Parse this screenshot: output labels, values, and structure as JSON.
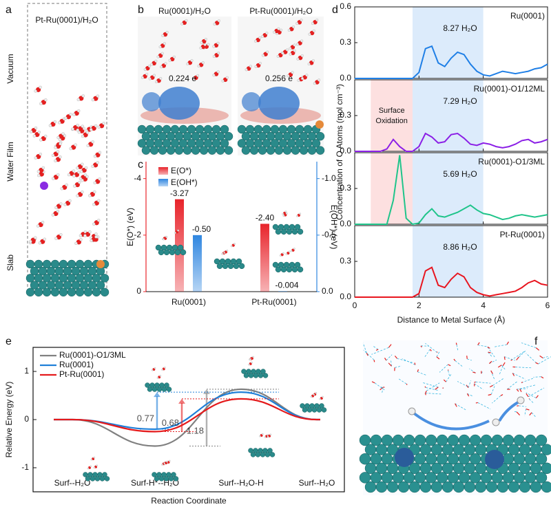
{
  "panel_labels": [
    "a",
    "b",
    "c",
    "d",
    "e",
    "f"
  ],
  "panel_a": {
    "title": "Pt-Ru(0001)/H₂O",
    "regions": [
      "Vacuum",
      "Water Film",
      "Slab"
    ]
  },
  "panel_b": {
    "images": [
      {
        "title": "Ru(0001)/H₂O",
        "charge": "0.224 e"
      },
      {
        "title": "Pt-Ru(0001)/H₂O",
        "charge": "0.256 e"
      }
    ]
  },
  "panel_d": {
    "xlabel": "Distance to Metal Surface (Å)",
    "ylabel": "Concentration of O Atoms (mol cm⁻³)"
  },
  "chart_data": [
    {
      "type": "bar",
      "categories": [
        "Ru(0001)",
        "Pt-Ru(0001)"
      ],
      "series": [
        {
          "name": "E(O*)",
          "color": "#e8242b",
          "values": [
            -3.27,
            -2.4
          ],
          "value_labels": [
            "-3.27",
            "-2.40"
          ]
        },
        {
          "name": "E(OH*)",
          "color": "#2f86e0",
          "axis": "y2",
          "values": [
            -0.5,
            -0.004
          ],
          "value_labels": [
            "-0.50",
            "-0.004"
          ]
        }
      ],
      "ylabel": "E(O*) (eV)",
      "y2label": "E(OH*) (eV)",
      "ylim": [
        0,
        -4.6
      ],
      "yticks": [
        -4,
        -2,
        0
      ],
      "y2lim": [
        0,
        -1.15
      ],
      "y2ticks": [
        {
          "value": -1,
          "label": "-1.0"
        },
        -0.5,
        {
          "value": 0,
          "label": "0.0"
        }
      ]
    },
    {
      "type": "line",
      "x": [
        0,
        0.2,
        0.4,
        0.6,
        0.8,
        1.0,
        1.2,
        1.4,
        1.6,
        1.8,
        2.0,
        2.2,
        2.4,
        2.6,
        2.8,
        3.0,
        3.2,
        3.4,
        3.6,
        3.8,
        4.0,
        4.2,
        4.4,
        4.6,
        4.8,
        5.0,
        5.2,
        5.4,
        5.6,
        5.8,
        6.0
      ],
      "series": [
        {
          "name": "Ru(0001)",
          "color": "#1f7fe6",
          "values": [
            0,
            0,
            0,
            0,
            0,
            0,
            0,
            0,
            0,
            0,
            0.05,
            0.25,
            0.27,
            0.13,
            0.1,
            0.17,
            0.22,
            0.2,
            0.12,
            0.06,
            0.03,
            0.02,
            0.04,
            0.06,
            0.05,
            0.04,
            0.05,
            0.06,
            0.08,
            0.09,
            0.12
          ]
        }
      ],
      "annotation": "8.27 H₂O",
      "ylim": [
        0,
        0.6
      ],
      "yticks": [
        {
          "value": 0,
          "label": "0.0"
        },
        0.3,
        0.6
      ],
      "spans": [
        {
          "range": [
            1.8,
            4.0
          ],
          "color": "#dcebfb"
        }
      ]
    },
    {
      "type": "line",
      "x": [
        0,
        0.2,
        0.4,
        0.6,
        0.8,
        1.0,
        1.2,
        1.4,
        1.6,
        1.8,
        2.0,
        2.2,
        2.4,
        2.6,
        2.8,
        3.0,
        3.2,
        3.4,
        3.6,
        3.8,
        4.0,
        4.2,
        4.4,
        4.6,
        4.8,
        5.0,
        5.2,
        5.4,
        5.6,
        5.8,
        6.0
      ],
      "series": [
        {
          "name": "Ru(0001)-O1/12ML",
          "color": "#8b1fe6",
          "values": [
            0,
            0,
            0,
            0,
            0,
            0.02,
            0.1,
            0.04,
            0,
            0,
            0.04,
            0.15,
            0.12,
            0.07,
            0.08,
            0.14,
            0.15,
            0.11,
            0.06,
            0.05,
            0.07,
            0.06,
            0.04,
            0.03,
            0.04,
            0.06,
            0.09,
            0.1,
            0.07,
            0.08,
            0.1
          ]
        }
      ],
      "annotation": "7.29 H₂O",
      "ylim": [
        0,
        0.6
      ],
      "yticks": [
        {
          "value": 0,
          "label": "0.0"
        },
        0.3
      ],
      "spans": [
        {
          "range": [
            0.5,
            1.8
          ],
          "color": "#fde0e0",
          "label": [
            "Surface",
            "Oxidation"
          ]
        },
        {
          "range": [
            1.8,
            4.0
          ],
          "color": "#dcebfb"
        }
      ]
    },
    {
      "type": "line",
      "x": [
        0,
        0.2,
        0.4,
        0.6,
        0.8,
        1.0,
        1.2,
        1.4,
        1.6,
        1.8,
        2.0,
        2.2,
        2.4,
        2.6,
        2.8,
        3.0,
        3.2,
        3.4,
        3.6,
        3.8,
        4.0,
        4.2,
        4.4,
        4.6,
        4.8,
        5.0,
        5.2,
        5.4,
        5.6,
        5.8,
        6.0
      ],
      "series": [
        {
          "name": "Ru(0001)-O1/3ML",
          "color": "#1fc48a",
          "values": [
            0,
            0,
            0,
            0,
            0,
            0,
            0.2,
            0.58,
            0.05,
            0,
            0.01,
            0.08,
            0.13,
            0.07,
            0.06,
            0.08,
            0.1,
            0.13,
            0.16,
            0.12,
            0.09,
            0.08,
            0.06,
            0.04,
            0.05,
            0.07,
            0.08,
            0.07,
            0.06,
            0.07,
            0.08
          ]
        }
      ],
      "annotation": "5.69 H₂O",
      "ylim": [
        0,
        0.6
      ],
      "yticks": [
        {
          "value": 0,
          "label": "0.0"
        },
        0.3
      ],
      "spans": [
        {
          "range": [
            0.5,
            1.8
          ],
          "color": "#fde0e0"
        },
        {
          "range": [
            1.8,
            4.0
          ],
          "color": "#dcebfb"
        }
      ]
    },
    {
      "type": "line",
      "x": [
        0,
        0.2,
        0.4,
        0.6,
        0.8,
        1.0,
        1.2,
        1.4,
        1.6,
        1.8,
        2.0,
        2.2,
        2.4,
        2.6,
        2.8,
        3.0,
        3.2,
        3.4,
        3.6,
        3.8,
        4.0,
        4.2,
        4.4,
        4.6,
        4.8,
        5.0,
        5.2,
        5.4,
        5.6,
        5.8,
        6.0
      ],
      "series": [
        {
          "name": "Pt-Ru(0001)",
          "color": "#e8141e",
          "values": [
            0,
            0,
            0,
            0,
            0,
            0,
            0,
            0,
            0,
            0,
            0.03,
            0.22,
            0.25,
            0.1,
            0.08,
            0.15,
            0.2,
            0.17,
            0.08,
            0.04,
            0.02,
            0.01,
            0.02,
            0.03,
            0.04,
            0.05,
            0.08,
            0.12,
            0.14,
            0.11,
            0.1
          ]
        }
      ],
      "annotation": "8.86 H₂O",
      "ylim": [
        0,
        0.6
      ],
      "yticks": [
        {
          "value": 0,
          "label": "0.0"
        },
        0.3
      ],
      "xlim": [
        0,
        6
      ],
      "xticks": [
        0,
        2,
        4,
        6
      ],
      "spans": [
        {
          "range": [
            1.8,
            4.0
          ],
          "color": "#dcebfb"
        }
      ]
    },
    {
      "type": "profile",
      "categories": [
        "Surf--H₂O",
        "Surf-H*--H₂O",
        "Surf--H₂O-H",
        "Surf--H₂O"
      ],
      "series": [
        {
          "name": "Ru(0001)-O1/3ML",
          "color": "#808080",
          "values": [
            0,
            -0.55,
            0.63,
            0
          ],
          "barrier": "1.18"
        },
        {
          "name": "Ru(0001)",
          "color": "#1f7fd8",
          "values": [
            0,
            -0.2,
            0.57,
            0
          ],
          "barrier": "0.77"
        },
        {
          "name": "Pt-Ru(0001)",
          "color": "#e41a1c",
          "values": [
            0,
            -0.25,
            0.43,
            0
          ],
          "barrier": "0.68"
        }
      ],
      "ylabel": "Relative Energy (eV)",
      "xlabel": "Reaction Coordinate",
      "ylim": [
        -1.5,
        1.5
      ],
      "yticks": [
        -1,
        0,
        1
      ]
    }
  ]
}
